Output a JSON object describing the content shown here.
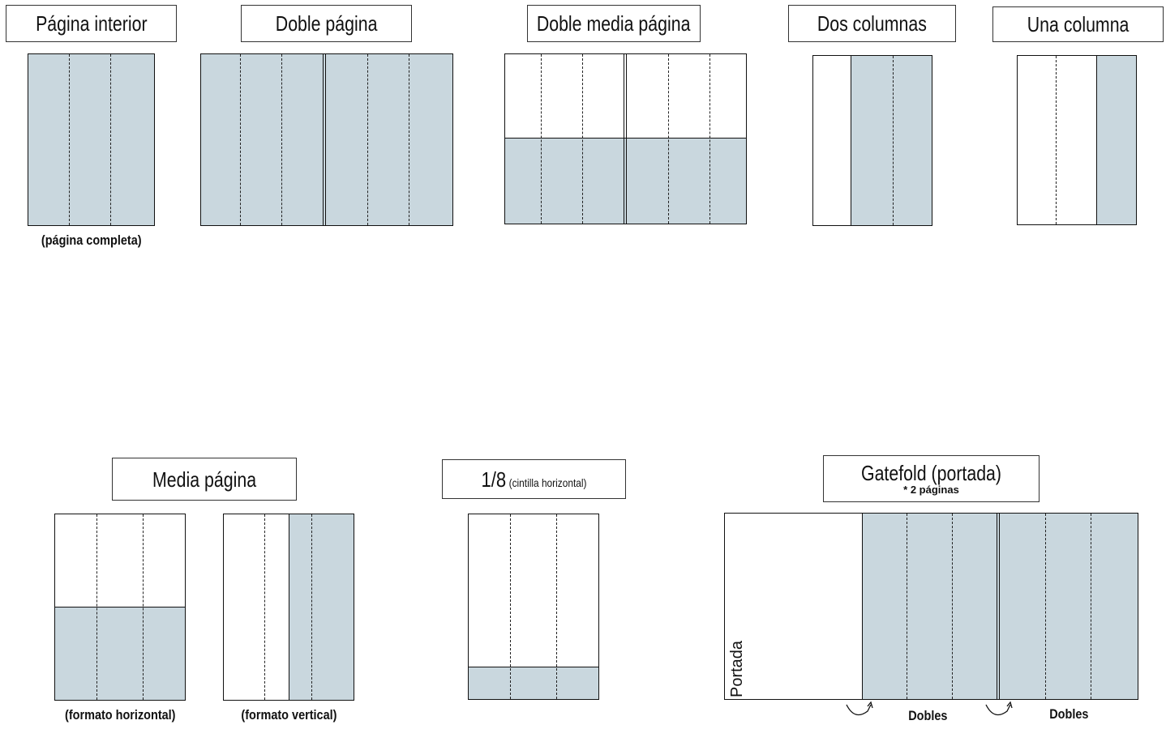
{
  "titles": {
    "pagina_interior": "Página interior",
    "doble_pagina": "Doble página",
    "doble_media_pagina": "Doble media página",
    "dos_columnas": "Dos columnas",
    "una_columna": "Una columna",
    "media_pagina": "Media página",
    "octavo": "1/8",
    "octavo_note": "(cintilla horizontal)",
    "gatefold": "Gatefold (portada)",
    "gatefold_note": "* 2 páginas"
  },
  "captions": {
    "pagina_completa": "(página completa)",
    "formato_horizontal": "(formato horizontal)",
    "formato_vertical": "(formato vertical)",
    "portada": "Portada",
    "dobles_1": "Dobles",
    "dobles_2": "Dobles"
  },
  "colors": {
    "ad_fill": "#c9d7de",
    "outline": "#111111"
  }
}
